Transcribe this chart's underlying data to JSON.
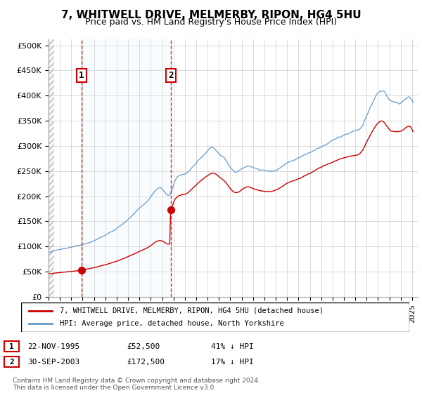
{
  "title": "7, WHITWELL DRIVE, MELMERBY, RIPON, HG4 5HU",
  "subtitle": "Price paid vs. HM Land Registry's House Price Index (HPI)",
  "ytick_values": [
    0,
    50000,
    100000,
    150000,
    200000,
    250000,
    300000,
    350000,
    400000,
    450000,
    500000
  ],
  "ylim": [
    0,
    512000
  ],
  "xlim_start": 1993.0,
  "xlim_end": 2025.5,
  "xtick_years": [
    1993,
    1994,
    1995,
    1996,
    1997,
    1998,
    1999,
    2000,
    2001,
    2002,
    2003,
    2004,
    2005,
    2006,
    2007,
    2008,
    2009,
    2010,
    2011,
    2012,
    2013,
    2014,
    2015,
    2016,
    2017,
    2018,
    2019,
    2020,
    2021,
    2022,
    2023,
    2024,
    2025
  ],
  "purchase1_x": 1995.9,
  "purchase1_y": 52500,
  "purchase2_x": 2003.75,
  "purchase2_y": 172500,
  "purchase1_date": "22-NOV-1995",
  "purchase1_price": "£52,500",
  "purchase1_hpi": "41% ↓ HPI",
  "purchase2_date": "30-SEP-2003",
  "purchase2_price": "£172,500",
  "purchase2_hpi": "17% ↓ HPI",
  "vline_color": "#cc0000",
  "legend_label_red": "7, WHITWELL DRIVE, MELMERBY, RIPON, HG4 5HU (detached house)",
  "legend_label_blue": "HPI: Average price, detached house, North Yorkshire",
  "footnote": "Contains HM Land Registry data © Crown copyright and database right 2024.\nThis data is licensed under the Open Government Licence v3.0.",
  "red_line_color": "#cc0000",
  "blue_line_color": "#6699cc",
  "blue_fill_color": "#ddeeff",
  "background_color": "#ffffff",
  "grid_color": "#cccccc",
  "hatch_color": "#cccccc",
  "title_fontsize": 11,
  "subtitle_fontsize": 9,
  "tick_fontsize": 8
}
